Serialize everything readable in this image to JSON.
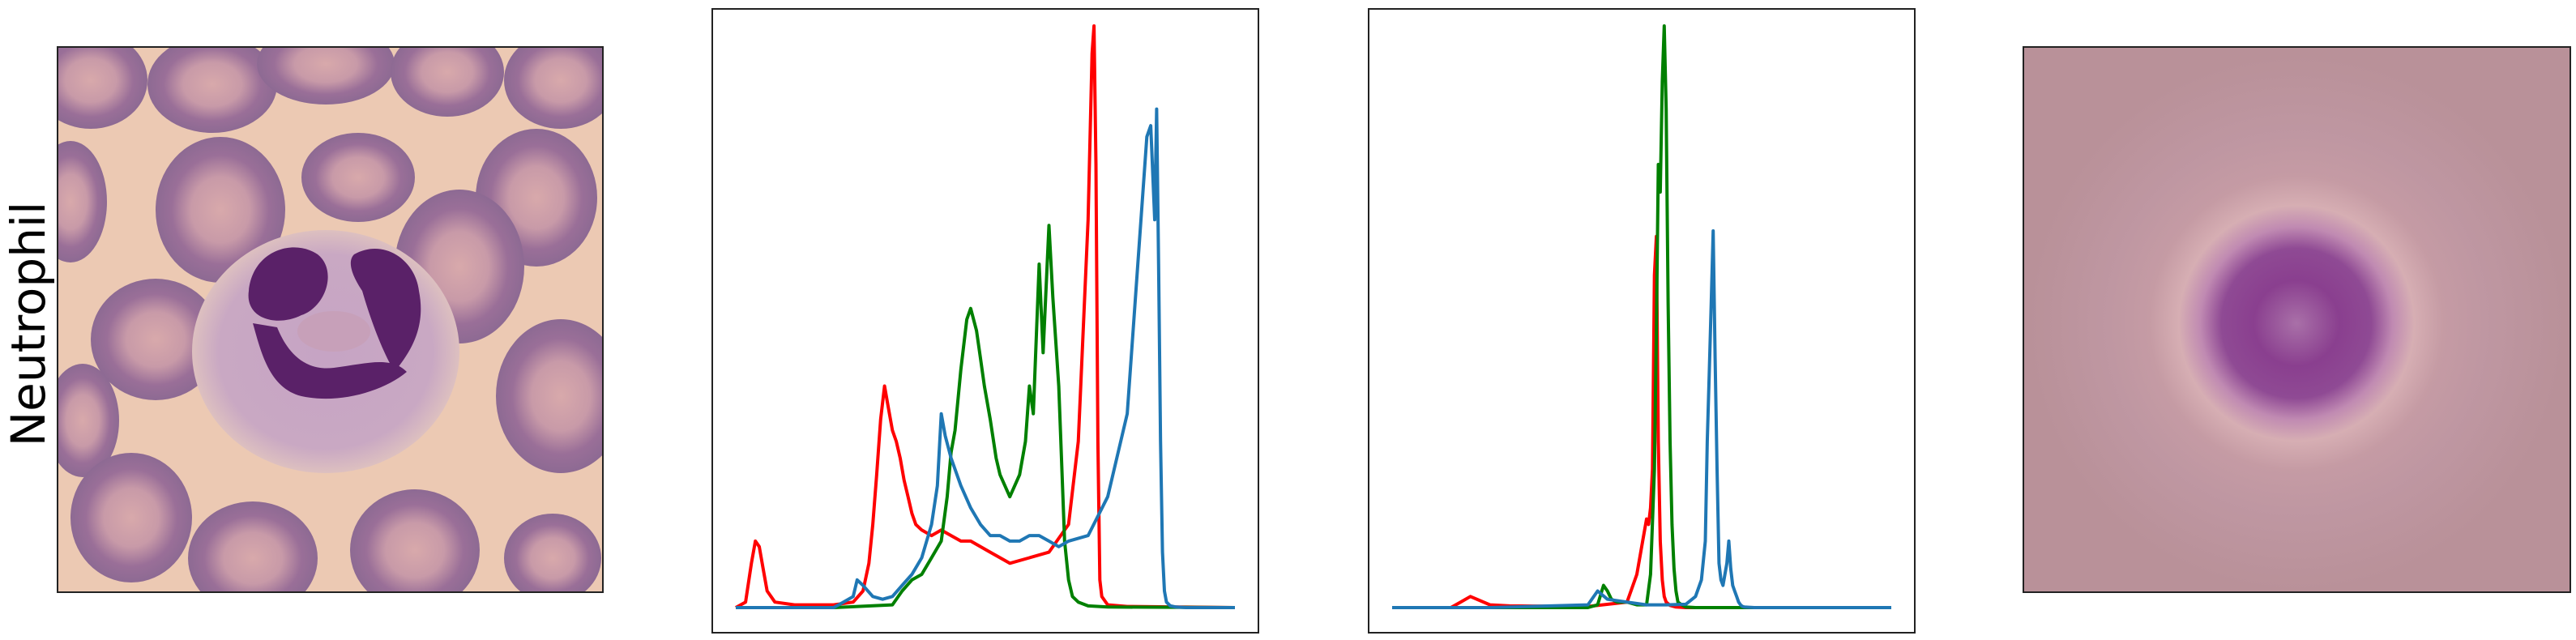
{
  "row_label": "Neutrophil",
  "colors": {
    "red": "#ff0000",
    "green": "#008000",
    "blue": "#1f77b4"
  },
  "chart_data": [
    {
      "type": "line",
      "title": "",
      "xlabel": "",
      "ylabel": "",
      "ticks": "none",
      "xlim": [
        0,
        255
      ],
      "ylim": [
        0,
        1.05
      ],
      "series": [
        {
          "color": "red",
          "x": [
            0,
            5,
            8,
            10,
            12,
            14,
            16,
            18,
            20,
            30,
            40,
            50,
            60,
            65,
            68,
            70,
            72,
            74,
            76,
            78,
            80,
            82,
            84,
            86,
            88,
            90,
            92,
            95,
            100,
            105,
            110,
            115,
            120,
            130,
            140,
            150,
            160,
            170,
            175,
            180,
            182,
            183,
            184,
            185,
            186,
            187,
            190,
            200,
            255
          ],
          "y": [
            0,
            0.01,
            0.08,
            0.12,
            0.11,
            0.07,
            0.03,
            0.02,
            0.01,
            0.005,
            0.005,
            0.005,
            0.01,
            0.03,
            0.08,
            0.15,
            0.24,
            0.34,
            0.4,
            0.36,
            0.32,
            0.3,
            0.27,
            0.23,
            0.2,
            0.17,
            0.15,
            0.14,
            0.13,
            0.14,
            0.13,
            0.12,
            0.12,
            0.1,
            0.08,
            0.09,
            0.1,
            0.15,
            0.3,
            0.7,
            1.0,
            1.05,
            0.8,
            0.3,
            0.05,
            0.02,
            0.005,
            0.002,
            0
          ]
        },
        {
          "color": "green",
          "x": [
            0,
            50,
            80,
            85,
            90,
            95,
            100,
            105,
            108,
            110,
            112,
            115,
            118,
            120,
            123,
            125,
            127,
            130,
            133,
            135,
            140,
            145,
            148,
            150,
            152,
            155,
            157,
            160,
            162,
            165,
            168,
            170,
            172,
            175,
            180,
            190,
            255
          ],
          "y": [
            0,
            0,
            0.005,
            0.03,
            0.05,
            0.06,
            0.09,
            0.12,
            0.2,
            0.28,
            0.32,
            0.43,
            0.52,
            0.54,
            0.5,
            0.45,
            0.4,
            0.34,
            0.27,
            0.24,
            0.2,
            0.24,
            0.3,
            0.4,
            0.35,
            0.62,
            0.46,
            0.69,
            0.56,
            0.4,
            0.12,
            0.05,
            0.02,
            0.01,
            0.003,
            0.001,
            0
          ]
        },
        {
          "color": "blue",
          "x": [
            0,
            50,
            55,
            60,
            62,
            65,
            70,
            75,
            80,
            85,
            90,
            95,
            100,
            103,
            105,
            107,
            110,
            115,
            120,
            125,
            130,
            135,
            140,
            145,
            150,
            155,
            160,
            165,
            170,
            180,
            190,
            200,
            205,
            210,
            212,
            214,
            215,
            216,
            217,
            218,
            219,
            220,
            222,
            225,
            230,
            255
          ],
          "y": [
            0,
            0,
            0.01,
            0.02,
            0.05,
            0.04,
            0.02,
            0.015,
            0.02,
            0.04,
            0.06,
            0.09,
            0.15,
            0.22,
            0.35,
            0.31,
            0.27,
            0.22,
            0.18,
            0.15,
            0.13,
            0.13,
            0.12,
            0.12,
            0.13,
            0.13,
            0.12,
            0.11,
            0.12,
            0.13,
            0.2,
            0.35,
            0.6,
            0.85,
            0.87,
            0.7,
            0.9,
            0.62,
            0.3,
            0.1,
            0.03,
            0.01,
            0.003,
            0.001,
            0,
            0
          ]
        }
      ]
    },
    {
      "type": "line",
      "title": "",
      "xlabel": "",
      "ylabel": "",
      "ticks": "none",
      "xlim": [
        0,
        255
      ],
      "ylim": [
        0,
        1.05
      ],
      "series": [
        {
          "color": "red",
          "x": [
            0,
            30,
            35,
            40,
            50,
            60,
            100,
            120,
            125,
            128,
            130,
            131,
            132,
            133,
            134,
            135,
            136,
            137,
            138,
            139,
            140,
            142,
            145,
            150,
            200,
            255
          ],
          "y": [
            0,
            0,
            0.01,
            0.02,
            0.005,
            0.003,
            0.002,
            0.01,
            0.06,
            0.12,
            0.16,
            0.15,
            0.18,
            0.25,
            0.6,
            0.67,
            0.3,
            0.12,
            0.05,
            0.02,
            0.01,
            0.004,
            0.001,
            0,
            0,
            0
          ]
        },
        {
          "color": "green",
          "x": [
            0,
            100,
            105,
            108,
            110,
            112,
            115,
            120,
            125,
            130,
            132,
            134,
            135,
            136,
            137,
            138,
            139,
            140,
            141,
            142,
            143,
            144,
            145,
            146,
            148,
            150,
            155,
            255
          ],
          "y": [
            0,
            0,
            0.005,
            0.04,
            0.03,
            0.015,
            0.01,
            0.01,
            0.005,
            0.005,
            0.06,
            0.25,
            0.5,
            0.8,
            0.75,
            0.95,
            1.05,
            0.9,
            0.55,
            0.3,
            0.15,
            0.07,
            0.03,
            0.01,
            0.005,
            0.001,
            0,
            0
          ]
        },
        {
          "color": "blue",
          "x": [
            0,
            50,
            100,
            105,
            110,
            120,
            130,
            140,
            150,
            155,
            158,
            160,
            161,
            162,
            163,
            164,
            165,
            166,
            167,
            168,
            169,
            170,
            171,
            172,
            173,
            174,
            175,
            176,
            177,
            178,
            179,
            180,
            185,
            190,
            200,
            210,
            255
          ],
          "y": [
            0,
            0,
            0.005,
            0.03,
            0.015,
            0.01,
            0.005,
            0.005,
            0.006,
            0.02,
            0.05,
            0.12,
            0.3,
            0.42,
            0.55,
            0.68,
            0.45,
            0.25,
            0.08,
            0.05,
            0.04,
            0.06,
            0.08,
            0.12,
            0.07,
            0.04,
            0.03,
            0.02,
            0.01,
            0.005,
            0.002,
            0.001,
            0,
            0,
            0,
            0,
            0
          ]
        }
      ]
    }
  ]
}
